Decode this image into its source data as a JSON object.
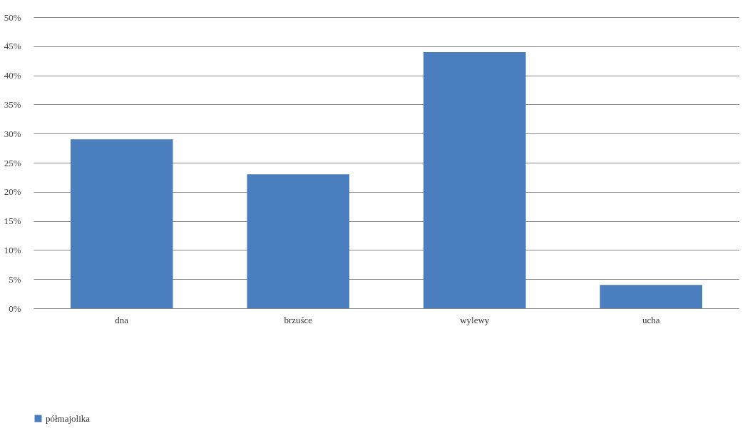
{
  "chart_data": {
    "type": "bar",
    "categories": [
      "dna",
      "brzuśce",
      "wylewy",
      "ucha"
    ],
    "series": [
      {
        "name": "półmajolika",
        "color": "#4a7ebf",
        "values": [
          29,
          23,
          44,
          4
        ]
      }
    ],
    "ylim": [
      0,
      50
    ],
    "yticks": [
      {
        "value": 0,
        "label": "0%"
      },
      {
        "value": 5,
        "label": "5%"
      },
      {
        "value": 10,
        "label": "10%"
      },
      {
        "value": 15,
        "label": "15%"
      },
      {
        "value": 20,
        "label": "20%"
      },
      {
        "value": 25,
        "label": "25%"
      },
      {
        "value": 30,
        "label": "30%"
      },
      {
        "value": 35,
        "label": "35%"
      },
      {
        "value": 40,
        "label": "40%"
      },
      {
        "value": 45,
        "label": "45%"
      },
      {
        "value": 50,
        "label": "50%"
      }
    ],
    "grid": "y",
    "legend": "bottom"
  }
}
